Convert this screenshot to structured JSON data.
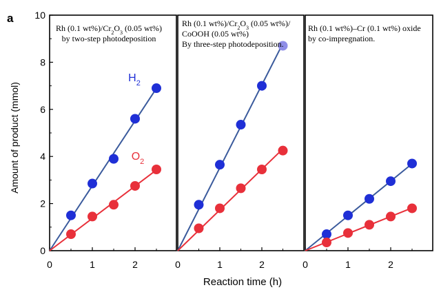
{
  "panel_letter": "a",
  "chart_data": [
    {
      "type": "scatter",
      "annotation": [
        "Rh (0.1 wt%)/Cr₂O₃ (0.05 wt%)",
        "by two-step photodeposition"
      ],
      "ylabel": "Amount of product (mmol)",
      "xlabel": "Reaction time (h)",
      "xlim": [
        0,
        3
      ],
      "ylim": [
        0,
        10
      ],
      "xticks": [
        0,
        1,
        2
      ],
      "yticks": [
        0,
        2,
        4,
        6,
        8,
        10
      ],
      "series": [
        {
          "name": "H₂",
          "color": "#1f2fd6",
          "x": [
            0.5,
            1.0,
            1.5,
            2.0,
            2.5
          ],
          "y": [
            1.5,
            2.85,
            3.9,
            5.6,
            6.9
          ]
        },
        {
          "name": "O₂",
          "color": "#e8303a",
          "x": [
            0.5,
            1.0,
            1.5,
            2.0,
            2.5
          ],
          "y": [
            0.7,
            1.45,
            1.95,
            2.75,
            3.45
          ]
        }
      ]
    },
    {
      "type": "scatter",
      "annotation": [
        "Rh (0.1 wt%)/Cr₂O₃ (0.05 wt%)/",
        "CoOOH (0.05 wt%)",
        "By three-step photodeposition."
      ],
      "xlim": [
        0,
        3
      ],
      "ylim": [
        0,
        10
      ],
      "xticks": [
        0,
        1,
        2
      ],
      "series": [
        {
          "color": "#1f2fd6",
          "x": [
            0.5,
            1.0,
            1.5,
            2.0,
            2.5
          ],
          "y": [
            1.95,
            3.65,
            5.35,
            7.0,
            8.7
          ]
        },
        {
          "color": "#e8303a",
          "x": [
            0.5,
            1.0,
            1.5,
            2.0,
            2.5
          ],
          "y": [
            0.95,
            1.8,
            2.65,
            3.45,
            4.25
          ]
        }
      ]
    },
    {
      "type": "scatter",
      "annotation": [
        "Rh (0.1 wt%)–Cr (0.1 wt%) oxide",
        "by co-impregnation."
      ],
      "xlim": [
        0,
        3
      ],
      "ylim": [
        0,
        10
      ],
      "xticks": [
        0,
        1,
        2
      ],
      "series": [
        {
          "color": "#1f2fd6",
          "x": [
            0.5,
            1.0,
            1.5,
            2.0,
            2.5
          ],
          "y": [
            0.7,
            1.5,
            2.2,
            2.95,
            3.7
          ]
        },
        {
          "color": "#e8303a",
          "x": [
            0.5,
            1.0,
            1.5,
            2.0,
            2.5
          ],
          "y": [
            0.35,
            0.75,
            1.1,
            1.45,
            1.8
          ]
        }
      ]
    }
  ]
}
